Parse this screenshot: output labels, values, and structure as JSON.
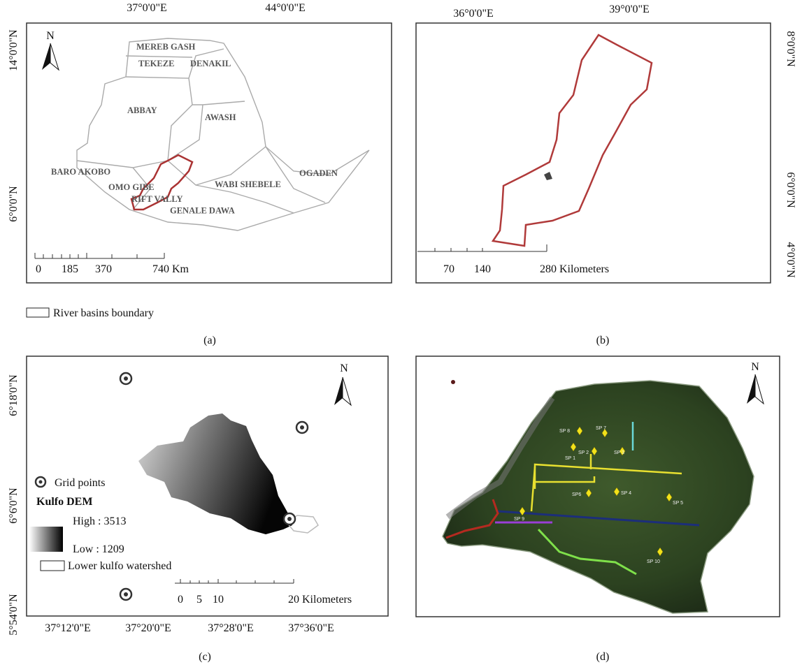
{
  "panels": [
    {
      "caption": "(a)",
      "north": "N",
      "x_labels": [
        "37°0'0\"E",
        "44°0'0\"E"
      ],
      "y_labels": [
        "14°0'0\"N",
        "6°0'0\"N"
      ],
      "basins": [
        "MEREB GASH",
        "TEKEZE",
        "DENAKIL",
        "ABBAY",
        "AWASH",
        "BARO AKOBO",
        "OMO GIBE",
        "RIFT VALLY",
        "WABI SHEBELE",
        "OGADEN",
        "GENALE DAWA"
      ],
      "scale": [
        "0",
        "185",
        "370",
        "740 Km"
      ],
      "legend": "River basins boundary"
    },
    {
      "caption": "(b)",
      "x_labels": [
        "36°0'0\"E",
        "39°0'0\"E"
      ],
      "y_labels": [
        "8°0'0\"N",
        "6°0'0\"N",
        "4°0'0\"N"
      ],
      "scale": [
        "70",
        "140",
        "280 Kilometers"
      ]
    },
    {
      "caption": "(c)",
      "north": "N",
      "x_labels": [
        "37°12'0\"E",
        "37°20'0\"E",
        "37°28'0\"E",
        "37°36'0\"E"
      ],
      "y_labels": [
        "6°18'0\"N",
        "6°6'0\"N",
        "5°54'0\"N"
      ],
      "legend": [
        "Grid points",
        "Kulfo DEM",
        "High : 3513",
        "Low : 1209",
        "Lower kulfo watershed"
      ],
      "scale": [
        "0",
        "5",
        "10",
        "20 Kilometers"
      ]
    },
    {
      "caption": "(d)",
      "north": "N",
      "points": [
        "SP 8",
        "SP 7",
        "SP 1",
        "SP 2",
        "SP 3",
        "SP6",
        "SP 4",
        "SP 5",
        "SP 9",
        "SP 10"
      ]
    }
  ]
}
